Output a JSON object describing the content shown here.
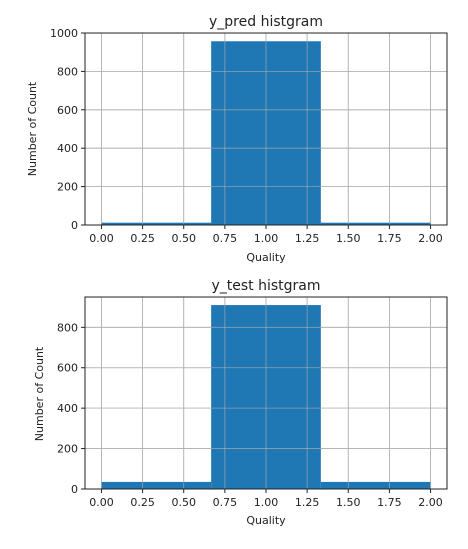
{
  "chart_data": [
    {
      "type": "bar",
      "title": "y_pred histgram",
      "xlabel": "Quality",
      "ylabel": "Number of Count",
      "bins": [
        [
          0.0,
          0.6667
        ],
        [
          0.6667,
          1.3333
        ],
        [
          1.3333,
          2.0
        ]
      ],
      "values": [
        12,
        957,
        12
      ],
      "xlim": [
        -0.1,
        2.1
      ],
      "ylim": [
        0,
        1000
      ],
      "xticks": [
        0.0,
        0.25,
        0.5,
        0.75,
        1.0,
        1.25,
        1.5,
        1.75,
        2.0
      ],
      "xtick_labels": [
        "0.00",
        "0.25",
        "0.50",
        "0.75",
        "1.00",
        "1.25",
        "1.50",
        "1.75",
        "2.00"
      ],
      "yticks": [
        0,
        200,
        400,
        600,
        800,
        1000
      ],
      "ytick_labels": [
        "0",
        "200",
        "400",
        "600",
        "800",
        "1000"
      ],
      "grid": true,
      "color": "#1f77b4"
    },
    {
      "type": "bar",
      "title": "y_test histgram",
      "xlabel": "Quality",
      "ylabel": "Number of Count",
      "bins": [
        [
          0.0,
          0.6667
        ],
        [
          0.6667,
          1.3333
        ],
        [
          1.3333,
          2.0
        ]
      ],
      "values": [
        35,
        910,
        35
      ],
      "xlim": [
        -0.1,
        2.1
      ],
      "ylim": [
        0,
        950
      ],
      "xticks": [
        0.0,
        0.25,
        0.5,
        0.75,
        1.0,
        1.25,
        1.5,
        1.75,
        2.0
      ],
      "xtick_labels": [
        "0.00",
        "0.25",
        "0.50",
        "0.75",
        "1.00",
        "1.25",
        "1.50",
        "1.75",
        "2.00"
      ],
      "yticks": [
        0,
        200,
        400,
        600,
        800
      ],
      "ytick_labels": [
        "0",
        "200",
        "400",
        "600",
        "800"
      ],
      "grid": true,
      "color": "#1f77b4"
    }
  ]
}
